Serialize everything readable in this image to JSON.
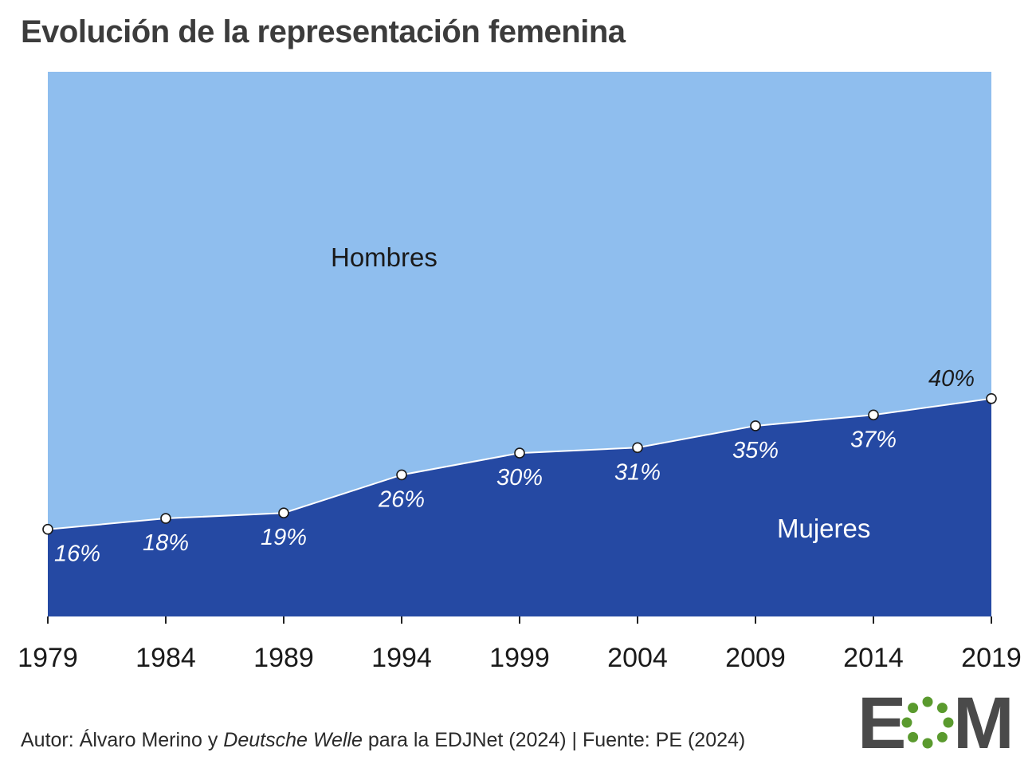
{
  "chart_data": {
    "type": "area",
    "title": "Evolución de la representación femenina",
    "x": [
      "1979",
      "1984",
      "1989",
      "1994",
      "1999",
      "2004",
      "2009",
      "2014",
      "2019"
    ],
    "series": [
      {
        "name": "Mujeres",
        "values": [
          16,
          18,
          19,
          26,
          30,
          31,
          35,
          37,
          40
        ],
        "color": "#2549a3"
      },
      {
        "name": "Hombres",
        "values": [
          84,
          82,
          81,
          74,
          70,
          69,
          65,
          63,
          60
        ],
        "color": "#8fbeee"
      }
    ],
    "data_labels": [
      "16%",
      "18%",
      "19%",
      "26%",
      "30%",
      "31%",
      "35%",
      "37%",
      "40%"
    ],
    "ylim": [
      0,
      100
    ],
    "xlabel": "",
    "ylabel": "",
    "stacked": true,
    "grid": false,
    "legend": "inline labels"
  },
  "footer": {
    "author_prefix": "Autor: Álvaro Merino y ",
    "author_italic": "Deutsche Welle",
    "author_suffix": " para la EDJNet (2024) | Fuente: PE (2024)"
  },
  "logo": {
    "text_left": "E",
    "text_right": "M",
    "icon": "eom-circle-dots-logo",
    "text_color": "#4a4a4a",
    "dot_color": "#5a9a2e"
  }
}
